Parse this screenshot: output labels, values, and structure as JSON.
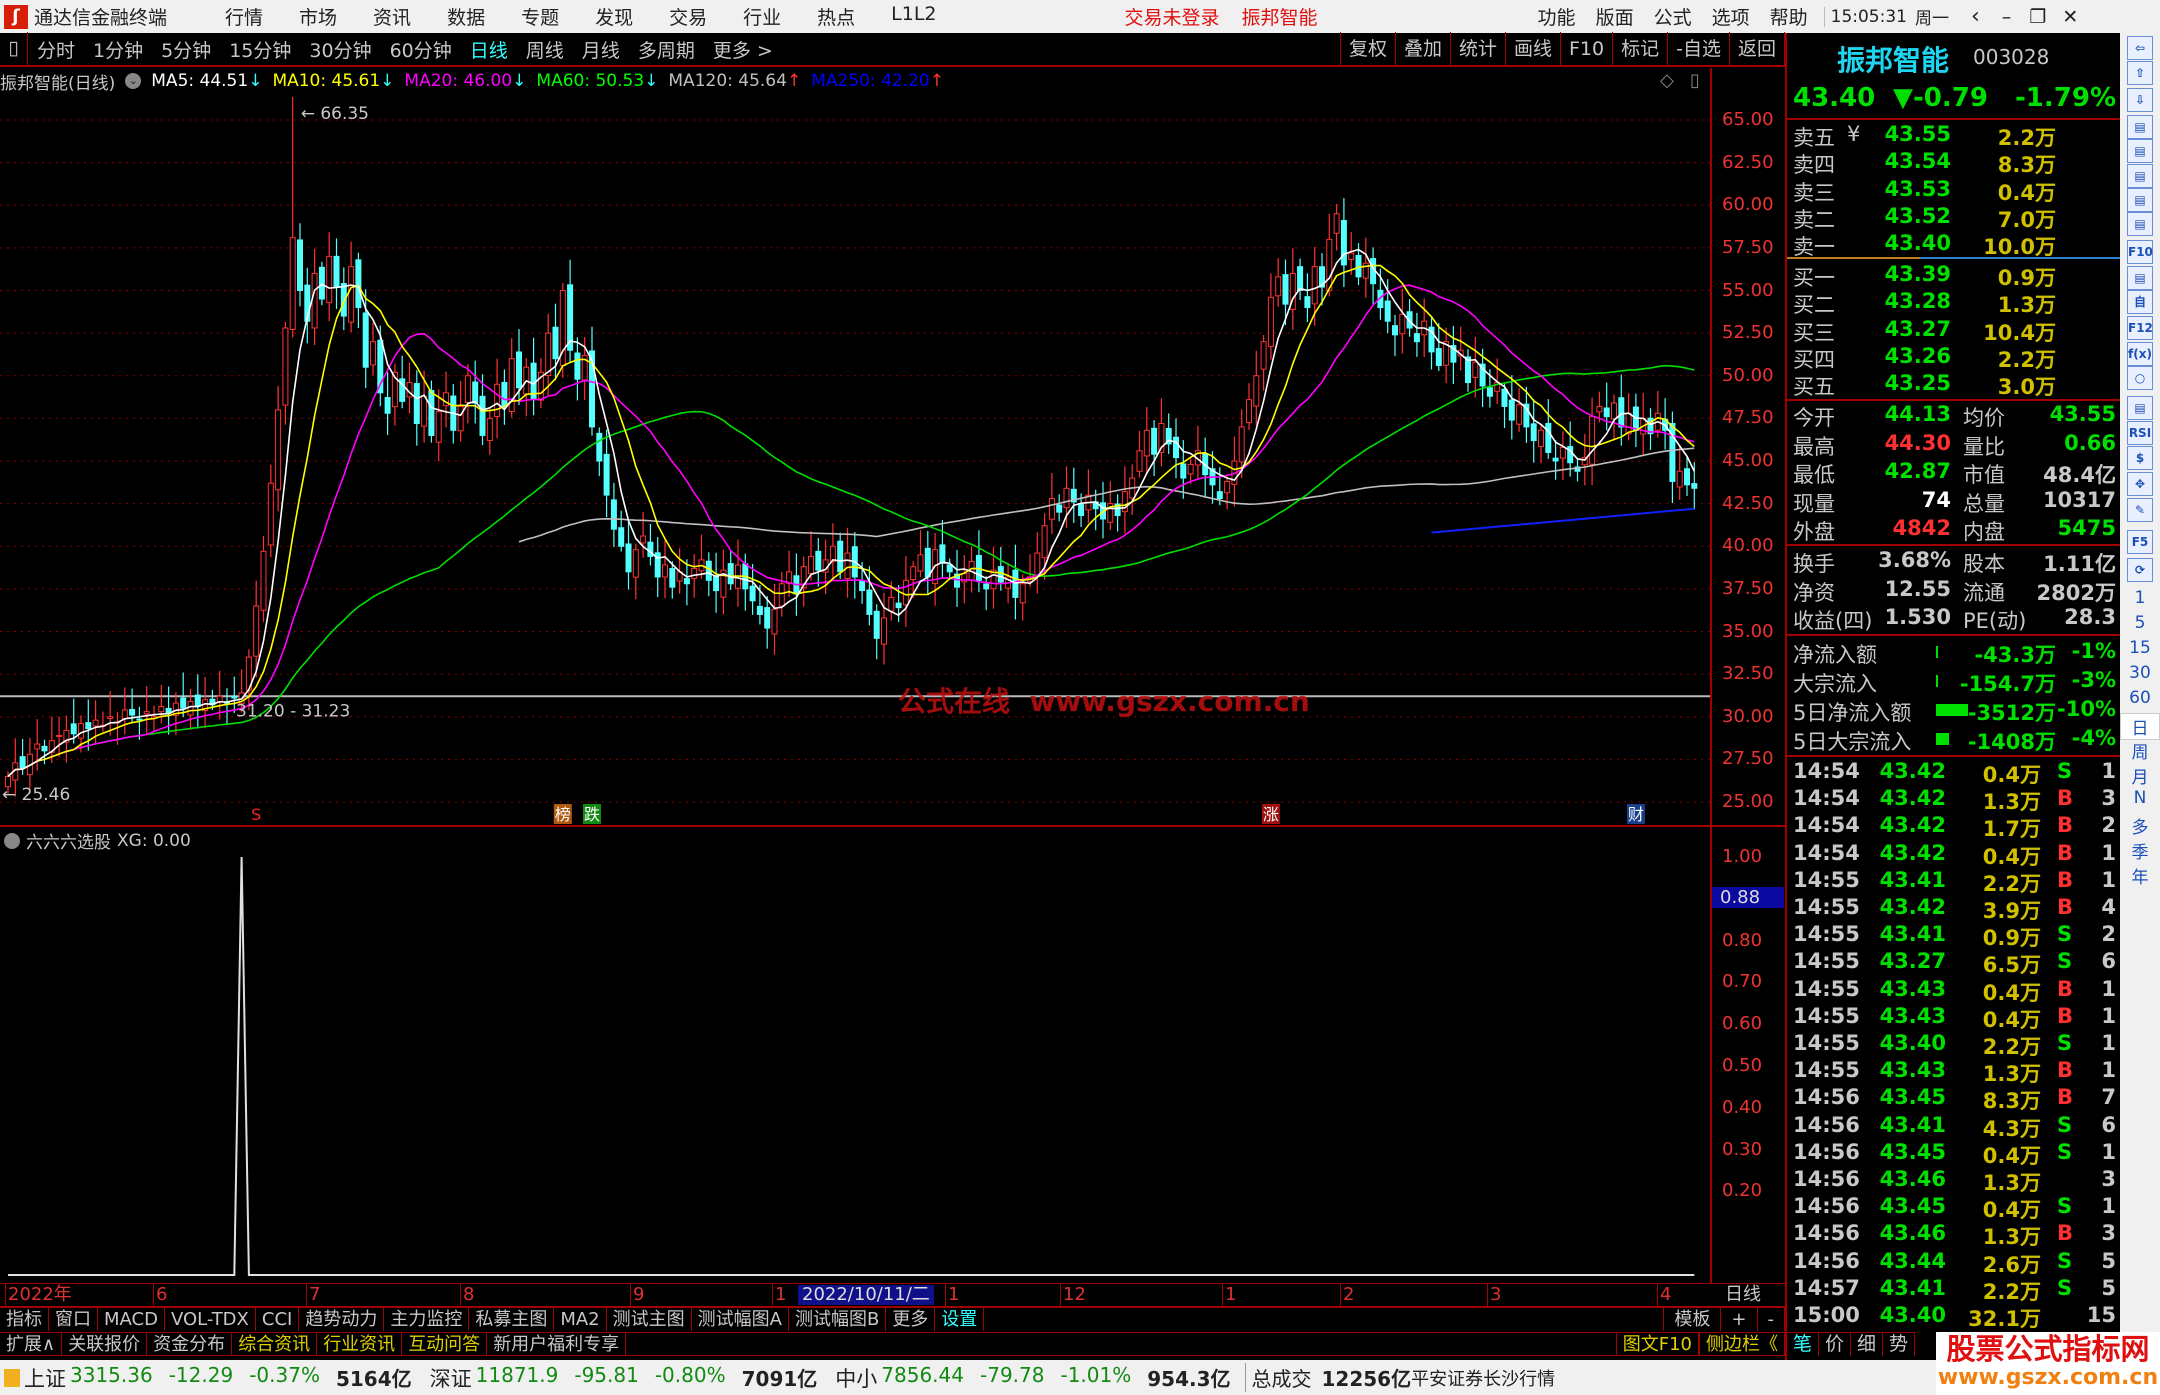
{
  "app": {
    "title": "通达信金融终端",
    "menu": [
      "行情",
      "市场",
      "资讯",
      "数据",
      "专题",
      "发现",
      "交易",
      "行业",
      "热点",
      "L1L2"
    ],
    "login_status": "交易未登录",
    "current_stock": "振邦智能",
    "right_menu": [
      "功能",
      "版面",
      "公式",
      "选项",
      "帮助"
    ],
    "clock": "15:05:31",
    "weekday": "周一"
  },
  "toolbar": {
    "periods": [
      "分时",
      "1分钟",
      "5分钟",
      "15分钟",
      "30分钟",
      "60分钟",
      "日线",
      "周线",
      "月线",
      "多周期",
      "更多 >"
    ],
    "active_period": "日线",
    "actions": [
      "复权",
      "叠加",
      "统计",
      "画线",
      "F10",
      "标记",
      "-自选",
      "返回"
    ]
  },
  "legend": {
    "title": "振邦智能(日线)",
    "items": [
      {
        "label": "MA5: 44.51",
        "arrow": "↓",
        "color": "#ffffff"
      },
      {
        "label": "MA10: 45.61",
        "arrow": "↓",
        "color": "#ffff00"
      },
      {
        "label": "MA20: 46.00",
        "arrow": "↓",
        "color": "#ff00ff"
      },
      {
        "label": "MA60: 50.53",
        "arrow": "↓",
        "color": "#00ff00"
      },
      {
        "label": "MA120: 45.64",
        "arrow": "↑",
        "color": "#c0c0c0"
      },
      {
        "label": "MA250: 42.20",
        "arrow": "↑",
        "color": "#0000ff"
      }
    ]
  },
  "chart_data": {
    "type": "candlestick",
    "ylim": [
      25,
      65
    ],
    "y_ticks": [
      "65.00",
      "62.50",
      "60.00",
      "57.50",
      "55.00",
      "52.50",
      "50.00",
      "47.50",
      "45.00",
      "42.50",
      "40.00",
      "37.50",
      "35.00",
      "32.50",
      "30.00",
      "27.50",
      "25.00"
    ],
    "x_ticks": [
      "2022年",
      "6",
      "7",
      "8",
      "9",
      "1",
      "1",
      "12",
      "1",
      "2",
      "3",
      "4"
    ],
    "cursor_date": "2022/10/11/二",
    "period_label": "日线",
    "high_label": "66.35",
    "low_label": "25.46",
    "high_value": 66.35,
    "low_value": 25.46,
    "hline_value": 31.2,
    "hline_label": "31.20 - 31.23",
    "ma250_last": 42.2,
    "closes": [
      26.5,
      27.3,
      27.0,
      27.8,
      28.4,
      28.0,
      28.6,
      28.9,
      29.2,
      29.0,
      29.6,
      29.3,
      29.8,
      29.5,
      30.0,
      29.7,
      30.4,
      30.1,
      29.8,
      30.3,
      30.0,
      30.6,
      30.2,
      30.8,
      30.5,
      30.9,
      30.6,
      31.0,
      30.7,
      31.2,
      30.8,
      31.1,
      31.4,
      33.5,
      36.5,
      39.7,
      43.7,
      48.0,
      52.8,
      58.1,
      55.0,
      53.2,
      56.0,
      54.5,
      57.0,
      55.2,
      53.5,
      56.4,
      54.0,
      50.5,
      52.0,
      49.0,
      47.8,
      50.2,
      48.5,
      49.6,
      47.2,
      48.8,
      46.5,
      47.9,
      49.0,
      46.8,
      48.2,
      50.0,
      48.4,
      46.5,
      47.5,
      49.5,
      48.2,
      51.0,
      49.3,
      50.5,
      48.6,
      50.2,
      52.5,
      51.0,
      55.0,
      51.5,
      49.8,
      51.2,
      47.0,
      45.0,
      43.0,
      41.0,
      40.0,
      38.5,
      39.8,
      40.6,
      39.4,
      38.2,
      38.9,
      37.6,
      38.5,
      37.8,
      38.7,
      39.2,
      38.0,
      37.4,
      38.6,
      37.8,
      38.9,
      37.5,
      36.8,
      36.0,
      35.2,
      36.3,
      37.8,
      38.5,
      37.2,
      38.8,
      39.4,
      38.6,
      39.2,
      40.0,
      38.5,
      39.6,
      38.2,
      37.4,
      36.0,
      34.6,
      35.8,
      37.0,
      36.4,
      38.0,
      38.8,
      39.5,
      38.2,
      39.8,
      39.0,
      38.5,
      37.6,
      38.4,
      39.1,
      38.0,
      37.5,
      38.6,
      37.9,
      38.2,
      37.0,
      37.8,
      38.2,
      39.6,
      41.2,
      42.8,
      42.0,
      43.4,
      42.6,
      41.8,
      43.0,
      42.2,
      41.6,
      42.5,
      41.8,
      43.2,
      44.0,
      45.6,
      46.8,
      45.4,
      47.2,
      46.0,
      45.2,
      44.0,
      44.8,
      45.6,
      44.2,
      43.6,
      42.8,
      43.8,
      45.0,
      47.0,
      48.6,
      50.0,
      52.0,
      54.6,
      55.8,
      54.2,
      56.0,
      55.0,
      54.0,
      56.4,
      55.2,
      58.0,
      59.5,
      56.5,
      57.2,
      55.8,
      56.6,
      55.4,
      54.0,
      53.2,
      52.4,
      53.6,
      52.8,
      52.0,
      53.2,
      51.4,
      50.6,
      52.0,
      50.8,
      51.5,
      49.6,
      50.8,
      49.4,
      48.8,
      49.6,
      48.2,
      47.4,
      48.3,
      47.0,
      46.2,
      46.8,
      45.5,
      45.0,
      45.8,
      44.9,
      44.4,
      45.2,
      47.6,
      48.2,
      47.6,
      48.4,
      47.0,
      47.8,
      46.8,
      47.5,
      46.6,
      47.8,
      46.8,
      43.8,
      44.4,
      43.6,
      43.4
    ],
    "markers": [
      {
        "text": "S",
        "color": "#ff2020",
        "bg": "",
        "bar": 34
      },
      {
        "text": "榜",
        "color": "#ffffff",
        "bg": "#b05a10",
        "bar": 76
      },
      {
        "text": "跌",
        "color": "#ffffff",
        "bg": "#108a10",
        "bar": 80
      },
      {
        "text": "涨",
        "color": "#ffffff",
        "bg": "#a01010",
        "bar": 173
      },
      {
        "text": "财",
        "color": "#ffffff",
        "bg": "#1a3f8a",
        "bar": 223
      }
    ],
    "up_color": "#ff3232",
    "down_color": "#54ffff"
  },
  "indicator": {
    "title": "六六六选股",
    "value_label": "XG: 0.00",
    "y_ticks": [
      "1.00",
      "0.80",
      "0.70",
      "0.60",
      "0.50",
      "0.40",
      "0.30",
      "0.20"
    ],
    "cursor_value": "0.88",
    "signal_bars": [
      32
    ],
    "ylim": [
      0,
      1
    ]
  },
  "watermark": "公式在线  www.gszx.com.cn",
  "quote": {
    "name": "振邦智能",
    "code": "003028",
    "price": "43.40",
    "change": "▼-0.79",
    "change_pct": "-1.79%",
    "asks": [
      {
        "label": "卖五",
        "extra": "¥",
        "price": "43.55",
        "vol": "2.2万"
      },
      {
        "label": "卖四",
        "price": "43.54",
        "vol": "8.3万"
      },
      {
        "label": "卖三",
        "price": "43.53",
        "vol": "0.4万"
      },
      {
        "label": "卖二",
        "price": "43.52",
        "vol": "7.0万"
      },
      {
        "label": "卖一",
        "price": "43.40",
        "vol": "10.0万"
      }
    ],
    "bids": [
      {
        "label": "买一",
        "price": "43.39",
        "vol": "0.9万"
      },
      {
        "label": "买二",
        "price": "43.28",
        "vol": "1.3万"
      },
      {
        "label": "买三",
        "price": "43.27",
        "vol": "10.4万"
      },
      {
        "label": "买四",
        "price": "43.26",
        "vol": "2.2万"
      },
      {
        "label": "买五",
        "price": "43.25",
        "vol": "3.0万"
      }
    ],
    "stats1": [
      {
        "l1": "今开",
        "v1": "44.13",
        "c1": "#00e000",
        "l2": "均价",
        "v2": "43.55",
        "c2": "#00e000"
      },
      {
        "l1": "最高",
        "v1": "44.30",
        "c1": "#ff3030",
        "l2": "量比",
        "v2": "0.66",
        "c2": "#00e000"
      },
      {
        "l1": "最低",
        "v1": "42.87",
        "c1": "#00e000",
        "l2": "市值",
        "v2": "48.4亿",
        "c2": "#c8c8c8"
      },
      {
        "l1": "现量",
        "v1": "74",
        "c1": "#ffffff",
        "l2": "总量",
        "v2": "10317",
        "c2": "#c8c8c8"
      },
      {
        "l1": "外盘",
        "v1": "4842",
        "c1": "#ff3030",
        "l2": "内盘",
        "v2": "5475",
        "c2": "#00e000"
      }
    ],
    "stats2": [
      {
        "l1": "换手",
        "v1": "3.68%",
        "c1": "#c8c8c8",
        "l2": "股本",
        "v2": "1.11亿",
        "c2": "#c8c8c8"
      },
      {
        "l1": "净资",
        "v1": "12.55",
        "c1": "#c8c8c8",
        "l2": "流通",
        "v2": "2802万",
        "c2": "#c8c8c8"
      },
      {
        "l1": "收益(四)",
        "v1": "1.530",
        "c1": "#c8c8c8",
        "l2": "PE(动)",
        "v2": "28.3",
        "c2": "#c8c8c8"
      }
    ],
    "flows": [
      {
        "label": "净流入额",
        "amount": "-43.3万",
        "pct": "-1%",
        "bar": 0.03
      },
      {
        "label": "大宗流入",
        "amount": "-154.7万",
        "pct": "-3%",
        "bar": 0.03
      },
      {
        "label": "5日净流入额",
        "amount": "-3512万",
        "pct": "-10%",
        "bar": 1
      },
      {
        "label": "5日大宗流入",
        "amount": "-1408万",
        "pct": "-4%",
        "bar": 0.4
      }
    ]
  },
  "ticks": [
    {
      "t": "14:54",
      "p": "43.42",
      "v": "0.4万",
      "s": "S",
      "n": "1"
    },
    {
      "t": "14:54",
      "p": "43.42",
      "v": "1.3万",
      "s": "B",
      "n": "3"
    },
    {
      "t": "14:54",
      "p": "43.42",
      "v": "1.7万",
      "s": "B",
      "n": "2"
    },
    {
      "t": "14:54",
      "p": "43.42",
      "v": "0.4万",
      "s": "B",
      "n": "1"
    },
    {
      "t": "14:55",
      "p": "43.41",
      "v": "2.2万",
      "s": "B",
      "n": "1"
    },
    {
      "t": "14:55",
      "p": "43.42",
      "v": "3.9万",
      "s": "B",
      "n": "4"
    },
    {
      "t": "14:55",
      "p": "43.41",
      "v": "0.9万",
      "s": "S",
      "n": "2"
    },
    {
      "t": "14:55",
      "p": "43.27",
      "v": "6.5万",
      "s": "S",
      "n": "6"
    },
    {
      "t": "14:55",
      "p": "43.43",
      "v": "0.4万",
      "s": "B",
      "n": "1"
    },
    {
      "t": "14:55",
      "p": "43.43",
      "v": "0.4万",
      "s": "B",
      "n": "1"
    },
    {
      "t": "14:55",
      "p": "43.40",
      "v": "2.2万",
      "s": "S",
      "n": "1"
    },
    {
      "t": "14:55",
      "p": "43.43",
      "v": "1.3万",
      "s": "B",
      "n": "1"
    },
    {
      "t": "14:56",
      "p": "43.45",
      "v": "8.3万",
      "s": "B",
      "n": "7"
    },
    {
      "t": "14:56",
      "p": "43.41",
      "v": "4.3万",
      "s": "S",
      "n": "6"
    },
    {
      "t": "14:56",
      "p": "43.45",
      "v": "0.4万",
      "s": "S",
      "n": "1"
    },
    {
      "t": "14:56",
      "p": "43.46",
      "v": "1.3万",
      "s": "",
      "n": "3"
    },
    {
      "t": "14:56",
      "p": "43.45",
      "v": "0.4万",
      "s": "S",
      "n": "1"
    },
    {
      "t": "14:56",
      "p": "43.46",
      "v": "1.3万",
      "s": "B",
      "n": "3"
    },
    {
      "t": "14:56",
      "p": "43.44",
      "v": "2.6万",
      "s": "S",
      "n": "5"
    },
    {
      "t": "14:57",
      "p": "43.41",
      "v": "2.2万",
      "s": "S",
      "n": "5"
    },
    {
      "t": "15:00",
      "p": "43.40",
      "v": "32.1万",
      "s": "",
      "n": "15"
    }
  ],
  "bottom": {
    "row1": [
      "指标",
      "窗口",
      "MACD",
      "VOL-TDX",
      "CCI",
      "趋势动力",
      "主力监控",
      "私募主图",
      "MA2",
      "测试主图",
      "测试幅图A",
      "测试幅图B",
      "更多",
      "设置"
    ],
    "row1_right": [
      "模板",
      "+",
      "-"
    ],
    "row2": [
      "扩展∧",
      "关联报价",
      "资金分布",
      "综合资讯",
      "行业资讯",
      "互动问答",
      "新用户福利专享"
    ],
    "row2_right": [
      "图文F10",
      "侧边栏《"
    ],
    "panel_tabs": [
      "笔",
      "价",
      "细",
      "势"
    ]
  },
  "status": {
    "indices": [
      {
        "name": "上证",
        "value": "3315.36",
        "chg": "-12.29",
        "pct": "-0.37%",
        "amt": "5164亿"
      },
      {
        "name": "深证",
        "value": "11871.9",
        "chg": "-95.81",
        "pct": "-0.80%",
        "amt": "7091亿"
      },
      {
        "name": "中小",
        "value": "7856.44",
        "chg": "-79.78",
        "pct": "-1.01%",
        "amt": "954.3亿"
      }
    ],
    "total_label": "总成交",
    "total": "12256亿",
    "broker": "平安证券长沙行情"
  },
  "logo": {
    "text": "股票公式指标网",
    "url": "www.gszx.com.cn"
  },
  "right_toolbar": {
    "icons": [
      "arrow-left-icon",
      "arrow-up-icon",
      "arrow-down-icon",
      "quote-list-icon",
      "grid-icon",
      "line-chart-icon",
      "candlestick-icon",
      "window-icon",
      "f10-icon",
      "tree-icon",
      "self-select-icon",
      "f12-icon",
      "formula-icon",
      "circle-icon",
      "wave-icon",
      "rsi-icon",
      "dollar-icon",
      "move-icon",
      "pencil-icon",
      "f5-icon",
      "refresh-icon"
    ],
    "periods": [
      "1",
      "5",
      "15",
      "30",
      "60",
      "日",
      "周",
      "月",
      "N",
      "多",
      "季",
      "年"
    ]
  }
}
